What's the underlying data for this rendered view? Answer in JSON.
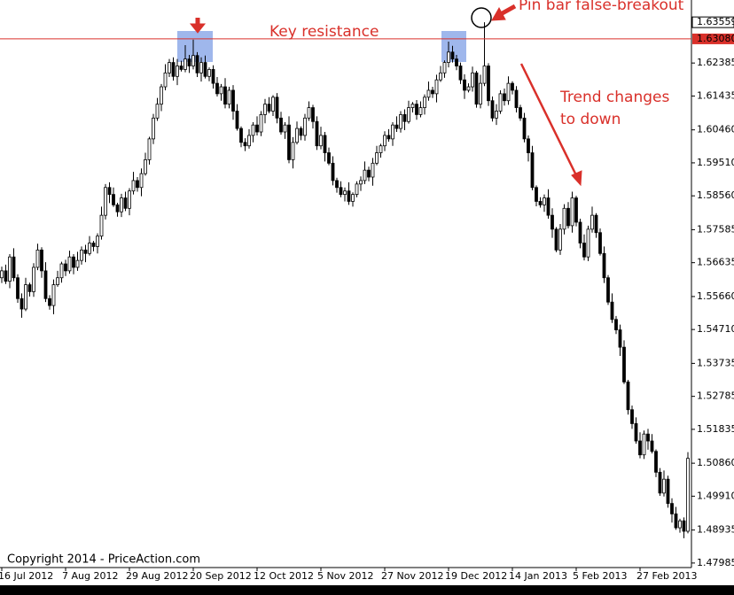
{
  "chart_data": {
    "type": "candlestick",
    "annotations": {
      "key_resistance": "Key resistance",
      "pin_bar": "Pin bar false-breakout",
      "trend": [
        "Trend changes",
        "to down"
      ],
      "copyright": "Copyright 2014 - PriceAction.com"
    },
    "up_color": "#ffffff",
    "down_color": "#000000",
    "line_color": "#000000",
    "ylim": [
      1.4788,
      1.642
    ],
    "yticks": [
      1.62385,
      1.61435,
      {
        "value": 1.6046,
        "label": "1.60460"
      },
      {
        "value": 1.5951,
        "label": "1.59510"
      },
      {
        "value": 1.5856,
        "label": "1.58560"
      },
      1.57585,
      1.56635,
      {
        "value": 1.5566,
        "label": "1.55660"
      },
      {
        "value": 1.5471,
        "label": "1.54710"
      },
      1.53735,
      1.52785,
      1.51835,
      {
        "value": 1.5086,
        "label": "1.50860"
      },
      {
        "value": 1.4991,
        "label": "1.49910"
      },
      1.48935,
      1.47985
    ],
    "resistance": {
      "value": 1.6308,
      "label": "1.63080",
      "color": "#d9302a"
    },
    "last_price": 1.63559,
    "xticks": [
      {
        "value": 0,
        "label": "16 Jul 2012"
      },
      {
        "value": 16,
        "label": "7 Aug 2012"
      },
      {
        "value": 32,
        "label": "29 Aug 2012"
      },
      {
        "value": 48,
        "label": "20 Sep 2012"
      },
      {
        "value": 64,
        "label": "12 Oct 2012"
      },
      {
        "value": 80,
        "label": "5 Nov 2012"
      },
      {
        "value": 96,
        "label": "27 Nov 2012"
      },
      {
        "value": 112,
        "label": "19 Dec 2012"
      },
      {
        "value": 128,
        "label": "14 Jan 2013"
      },
      {
        "value": 144,
        "label": "5 Feb 2013"
      },
      {
        "value": 160,
        "label": "27 Feb 2013"
      }
    ],
    "open": [
      1.562,
      1.564,
      1.561,
      1.568,
      1.562,
      1.556,
      1.553,
      1.56,
      1.558,
      1.565,
      1.57,
      1.564,
      1.556,
      1.554,
      1.56,
      1.562,
      1.566,
      1.564,
      1.568,
      1.565,
      1.567,
      1.57,
      1.569,
      1.572,
      1.571,
      1.574,
      1.58,
      1.588,
      1.586,
      1.583,
      1.581,
      1.585,
      1.582,
      1.587,
      1.59,
      1.588,
      1.592,
      1.596,
      1.602,
      1.608,
      1.612,
      1.617,
      1.621,
      1.624,
      1.62,
      1.623,
      1.622,
      1.625,
      1.623,
      1.626,
      1.621,
      1.624,
      1.62,
      1.622,
      1.618,
      1.615,
      1.617,
      1.612,
      1.616,
      1.61,
      1.605,
      1.601,
      1.6,
      1.603,
      1.606,
      1.604,
      1.609,
      1.612,
      1.61,
      1.614,
      1.608,
      1.604,
      1.606,
      1.596,
      1.601,
      1.605,
      1.603,
      1.608,
      1.611,
      1.607,
      1.6,
      1.603,
      1.598,
      1.595,
      1.59,
      1.588,
      1.586,
      1.587,
      1.584,
      1.586,
      1.589,
      1.59,
      1.593,
      1.591,
      1.595,
      1.598,
      1.6,
      1.603,
      1.602,
      1.606,
      1.605,
      1.609,
      1.607,
      1.611,
      1.612,
      1.609,
      1.611,
      1.614,
      1.616,
      1.615,
      1.619,
      1.621,
      1.624,
      1.627,
      1.625,
      1.623,
      1.619,
      1.616,
      1.617,
      1.621,
      1.612,
      1.618,
      1.623,
      1.613,
      1.608,
      1.61,
      1.615,
      1.613,
      1.618,
      1.616,
      1.611,
      1.608,
      1.602,
      1.598,
      1.588,
      1.584,
      1.583,
      1.585,
      1.58,
      1.576,
      1.57,
      1.576,
      1.582,
      1.577,
      1.585,
      1.578,
      1.572,
      1.568,
      1.576,
      1.58,
      1.575,
      1.569,
      1.562,
      1.555,
      1.55,
      1.547,
      1.542,
      1.532,
      1.524,
      1.52,
      1.515,
      1.511,
      1.517,
      1.515,
      1.512,
      1.506,
      1.5,
      1.504,
      1.497,
      1.494,
      1.49,
      1.492,
      1.489
    ],
    "high": [
      1.5652,
      1.5658,
      1.5688,
      1.5705,
      1.563,
      1.5575,
      1.562,
      1.5606,
      1.5662,
      1.5718,
      1.5708,
      1.5665,
      1.557,
      1.5615,
      1.564,
      1.5666,
      1.5672,
      1.5698,
      1.5688,
      1.5695,
      1.571,
      1.5715,
      1.574,
      1.5726,
      1.5748,
      1.5825,
      1.589,
      1.5895,
      1.588,
      1.5836,
      1.5862,
      1.5868,
      1.5878,
      1.5925,
      1.591,
      1.5935,
      1.598,
      1.6026,
      1.6092,
      1.6138,
      1.6178,
      1.6235,
      1.625,
      1.6255,
      1.625,
      1.6245,
      1.629,
      1.6262,
      1.6306,
      1.627,
      1.6255,
      1.626,
      1.6226,
      1.6232,
      1.6198,
      1.6178,
      1.6195,
      1.617,
      1.6175,
      1.612,
      1.6056,
      1.6022,
      1.6048,
      1.6068,
      1.6085,
      1.61,
      1.6135,
      1.614,
      1.6146,
      1.6152,
      1.6098,
      1.6068,
      1.6085,
      1.6025,
      1.607,
      1.6056,
      1.6092,
      1.6128,
      1.6118,
      1.6085,
      1.6055,
      1.604,
      1.5995,
      1.597,
      1.5908,
      1.5898,
      1.588,
      1.5895,
      1.5866,
      1.5898,
      1.5912,
      1.5955,
      1.594,
      1.5965,
      1.6,
      1.6006,
      1.6042,
      1.6048,
      1.6068,
      1.6085,
      1.61,
      1.6105,
      1.613,
      1.6126,
      1.6132,
      1.6128,
      1.6148,
      1.6185,
      1.617,
      1.6205,
      1.623,
      1.6246,
      1.63,
      1.6288,
      1.6262,
      1.624,
      1.6206,
      1.618,
      1.6228,
      1.6216,
      1.6205,
      1.6356,
      1.6238,
      1.6142,
      1.612,
      1.616,
      1.6165,
      1.62,
      1.6186,
      1.6172,
      1.6118,
      1.6095,
      1.603,
      1.6,
      1.5886,
      1.5852,
      1.586,
      1.5875,
      1.582,
      1.5766,
      1.5775,
      1.5832,
      1.5838,
      1.5868,
      1.5856,
      1.579,
      1.5745,
      1.577,
      1.5825,
      1.5806,
      1.5762,
      1.571,
      1.5628,
      1.5575,
      1.551,
      1.5485,
      1.544,
      1.5326,
      1.5252,
      1.5218,
      1.5175,
      1.518,
      1.5185,
      1.517,
      1.5126,
      1.5072,
      1.5065,
      1.505,
      1.4985,
      1.496,
      1.4926,
      1.493,
      1.5118
    ],
    "low": [
      1.5605,
      1.5602,
      1.559,
      1.561,
      1.5548,
      1.5505,
      1.5524,
      1.5566,
      1.5565,
      1.5642,
      1.562,
      1.555,
      1.5528,
      1.5515,
      1.5594,
      1.5606,
      1.5625,
      1.5632,
      1.563,
      1.564,
      1.5658,
      1.5665,
      1.5684,
      1.5696,
      1.569,
      1.573,
      1.5788,
      1.5835,
      1.5824,
      1.5796,
      1.5795,
      1.5812,
      1.58,
      1.586,
      1.5868,
      1.5855,
      1.5914,
      1.5946,
      1.6005,
      1.6072,
      1.61,
      1.616,
      1.6198,
      1.6188,
      1.6175,
      1.6214,
      1.6212,
      1.621,
      1.622,
      1.6198,
      1.6185,
      1.6194,
      1.6186,
      1.6165,
      1.6142,
      1.613,
      1.6108,
      1.6108,
      1.6075,
      1.6044,
      1.5996,
      1.5985,
      1.5992,
      1.601,
      1.603,
      1.6028,
      1.6065,
      1.6094,
      1.6086,
      1.6065,
      1.6032,
      1.602,
      1.595,
      1.5935,
      1.6004,
      1.6016,
      1.6015,
      1.6072,
      1.605,
      1.5988,
      1.599,
      1.5955,
      1.5944,
      1.5886,
      1.5865,
      1.5852,
      1.584,
      1.583,
      1.5825,
      1.5852,
      1.587,
      1.589,
      1.5898,
      1.5885,
      1.5944,
      1.5966,
      1.5985,
      1.6012,
      1.6,
      1.604,
      1.6038,
      1.6045,
      1.6064,
      1.6096,
      1.6075,
      1.6082,
      1.609,
      1.613,
      1.6138,
      1.6125,
      1.6184,
      1.6196,
      1.6226,
      1.624,
      1.6218,
      1.6178,
      1.6135,
      1.6154,
      1.6156,
      1.611,
      1.6108,
      1.6172,
      1.6115,
      1.607,
      1.606,
      1.6092,
      1.6116,
      1.6118,
      1.6148,
      1.6096,
      1.6072,
      1.601,
      1.5955,
      1.5872,
      1.5826,
      1.5822,
      1.581,
      1.579,
      1.5735,
      1.5694,
      1.5686,
      1.5745,
      1.5762,
      1.575,
      1.5768,
      1.5705,
      1.567,
      1.5668,
      1.575,
      1.5735,
      1.5684,
      1.5605,
      1.5542,
      1.549,
      1.5458,
      1.5395,
      1.5314,
      1.5226,
      1.5185,
      1.5142,
      1.51,
      1.5098,
      1.5125,
      1.5114,
      1.5046,
      1.4992,
      1.499,
      1.4958,
      1.4915,
      1.4894,
      1.4886,
      1.487,
      1.4884
    ],
    "close": [
      1.564,
      1.561,
      1.568,
      1.562,
      1.556,
      1.553,
      1.56,
      1.558,
      1.565,
      1.57,
      1.564,
      1.556,
      1.554,
      1.56,
      1.562,
      1.566,
      1.564,
      1.568,
      1.565,
      1.567,
      1.57,
      1.569,
      1.572,
      1.571,
      1.574,
      1.58,
      1.588,
      1.586,
      1.583,
      1.581,
      1.585,
      1.582,
      1.587,
      1.59,
      1.588,
      1.592,
      1.596,
      1.602,
      1.608,
      1.612,
      1.617,
      1.621,
      1.624,
      1.62,
      1.623,
      1.622,
      1.625,
      1.623,
      1.626,
      1.621,
      1.624,
      1.62,
      1.622,
      1.618,
      1.615,
      1.617,
      1.612,
      1.616,
      1.61,
      1.605,
      1.601,
      1.6,
      1.603,
      1.606,
      1.604,
      1.609,
      1.612,
      1.61,
      1.614,
      1.608,
      1.604,
      1.606,
      1.596,
      1.601,
      1.605,
      1.603,
      1.608,
      1.611,
      1.607,
      1.6,
      1.603,
      1.598,
      1.595,
      1.59,
      1.588,
      1.586,
      1.587,
      1.584,
      1.586,
      1.589,
      1.59,
      1.593,
      1.591,
      1.595,
      1.598,
      1.6,
      1.603,
      1.602,
      1.606,
      1.605,
      1.609,
      1.607,
      1.611,
      1.612,
      1.609,
      1.611,
      1.614,
      1.616,
      1.615,
      1.619,
      1.621,
      1.624,
      1.627,
      1.625,
      1.623,
      1.619,
      1.616,
      1.617,
      1.621,
      1.612,
      1.618,
      1.623,
      1.613,
      1.608,
      1.61,
      1.615,
      1.613,
      1.618,
      1.616,
      1.611,
      1.608,
      1.602,
      1.598,
      1.588,
      1.584,
      1.583,
      1.585,
      1.58,
      1.576,
      1.57,
      1.576,
      1.582,
      1.577,
      1.585,
      1.578,
      1.572,
      1.568,
      1.576,
      1.58,
      1.575,
      1.569,
      1.562,
      1.555,
      1.55,
      1.547,
      1.542,
      1.532,
      1.524,
      1.52,
      1.515,
      1.511,
      1.517,
      1.515,
      1.512,
      1.506,
      1.5,
      1.504,
      1.497,
      1.494,
      1.49,
      1.492,
      1.489,
      1.51
    ]
  }
}
